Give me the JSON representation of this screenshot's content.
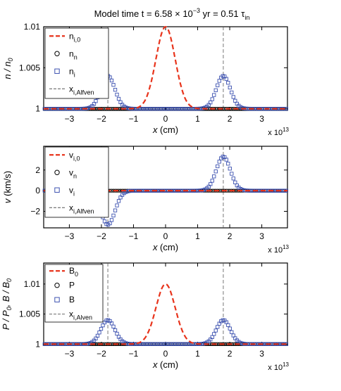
{
  "title": {
    "prefix": "Model time t = 6.58 × 10",
    "exp": "−3",
    "mid": " yr =  0.51 τ",
    "sub": "in"
  },
  "chart_data": [
    {
      "type": "line",
      "xlim": [
        -3.8,
        3.8
      ],
      "ylim": [
        0.9998,
        1.01
      ],
      "x_scale_label": "x 10",
      "x_scale_exp": "13",
      "xlabel": {
        "main": "x",
        "unit": " (cm)"
      },
      "ylabel": {
        "main": "n / n",
        "sub": "0"
      },
      "xticks": [
        -3,
        -2,
        -1,
        0,
        1,
        2,
        3
      ],
      "xtick_labels": [
        "−3",
        "−2",
        "−1",
        "0",
        "1",
        "2",
        "3"
      ],
      "yticks": [
        1,
        1.005,
        1.01
      ],
      "ytick_labels": [
        "1",
        "1.005",
        "1.01"
      ],
      "vlines": [
        -1.8,
        1.8
      ],
      "baseline": 1,
      "dashed_peak": {
        "center": 0,
        "amp": 0.01,
        "width": 0.3
      },
      "square_peaks": [
        {
          "center": -1.8,
          "amp": 0.004,
          "width": 0.22
        },
        {
          "center": 1.8,
          "amp": 0.004,
          "width": 0.22
        }
      ],
      "legend": [
        {
          "style": "dash",
          "main": "n",
          "sub": "i,0"
        },
        {
          "style": "circle",
          "main": "n",
          "sub": "n"
        },
        {
          "style": "square",
          "main": "n",
          "sub": "i"
        },
        {
          "style": "thin-dash",
          "main": "x",
          "sub": "i,Alfven"
        }
      ]
    },
    {
      "type": "line",
      "xlim": [
        -3.8,
        3.8
      ],
      "ylim": [
        -3.6,
        4.3
      ],
      "x_scale_label": "x 10",
      "x_scale_exp": "13",
      "xlabel": {
        "main": "x",
        "unit": " (cm)"
      },
      "ylabel": {
        "main": "v",
        "unit": " (km/s)"
      },
      "xticks": [
        -3,
        -2,
        -1,
        0,
        1,
        2,
        3
      ],
      "xtick_labels": [
        "−3",
        "−2",
        "−1",
        "0",
        "1",
        "2",
        "3"
      ],
      "yticks": [
        -2,
        0,
        2
      ],
      "ytick_labels": [
        "−2",
        "0",
        "2"
      ],
      "vlines": [
        -1.8,
        1.8
      ],
      "baseline": 0,
      "dashed_peak": {
        "center": 0,
        "amp": 0,
        "width": 0.3
      },
      "square_peaks": [
        {
          "center": -1.8,
          "amp": -3.3,
          "width": 0.22
        },
        {
          "center": 1.8,
          "amp": 3.3,
          "width": 0.22
        }
      ],
      "legend": [
        {
          "style": "dash",
          "main": "v",
          "sub": "i,0"
        },
        {
          "style": "circle",
          "main": "v",
          "sub": "n"
        },
        {
          "style": "square",
          "main": "v",
          "sub": "i"
        },
        {
          "style": "thin-dash",
          "main": "x",
          "sub": "i,Alfven"
        }
      ]
    },
    {
      "type": "line",
      "xlim": [
        -3.8,
        3.8
      ],
      "ylim": [
        0.9998,
        1.0135
      ],
      "x_scale_label": "x 10",
      "x_scale_exp": "13",
      "xlabel": {
        "main": "x",
        "unit": " (cm)"
      },
      "ylabel": {
        "main": "P / P",
        "sub": "0",
        "mid": ", B / B",
        "sub2": "0"
      },
      "xticks": [
        -3,
        -2,
        -1,
        0,
        1,
        2,
        3
      ],
      "xtick_labels": [
        "−3",
        "−2",
        "−1",
        "0",
        "1",
        "2",
        "3"
      ],
      "yticks": [
        1,
        1.005,
        1.01
      ],
      "ytick_labels": [
        "1",
        "1.005",
        "1.01"
      ],
      "vlines": [
        -1.8,
        1.8
      ],
      "baseline": 1,
      "dashed_peak": {
        "center": 0,
        "amp": 0.01,
        "width": 0.3
      },
      "square_peaks": [
        {
          "center": -1.8,
          "amp": 0.004,
          "width": 0.22
        },
        {
          "center": 1.8,
          "amp": 0.004,
          "width": 0.22
        }
      ],
      "legend": [
        {
          "style": "dash",
          "main": "B",
          "sub": "0"
        },
        {
          "style": "circle",
          "main": "P",
          "sub": ""
        },
        {
          "style": "square",
          "main": "B",
          "sub": ""
        },
        {
          "style": "thin-dash",
          "main": "x",
          "sub": "i,Alven"
        }
      ]
    }
  ],
  "colors": {
    "dashed": "#e8341c",
    "square": "#3d52b0",
    "circle": "#000000",
    "axis": "#000000",
    "vline": "#555555"
  }
}
